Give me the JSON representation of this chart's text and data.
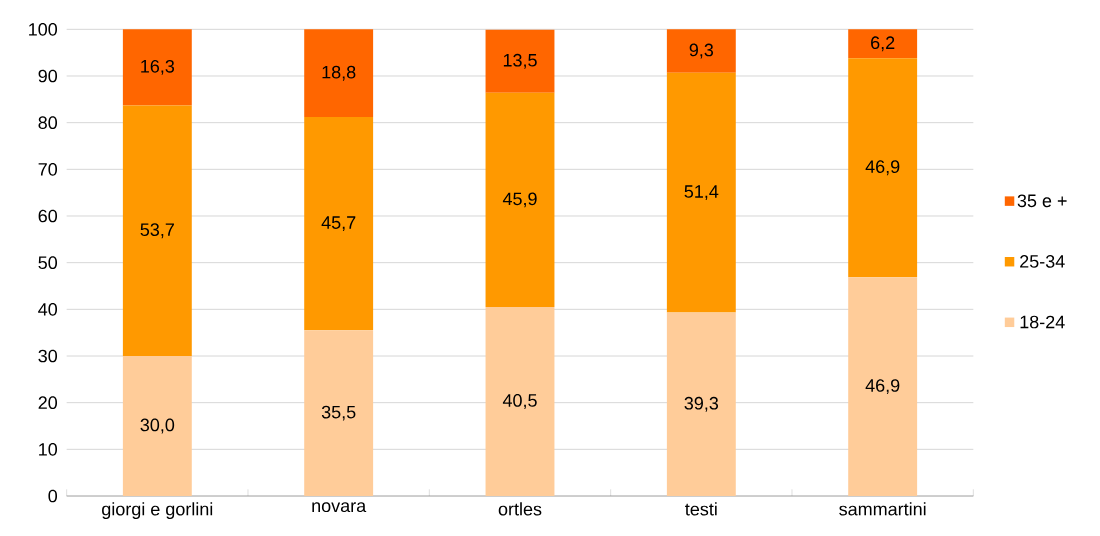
{
  "chart_data": {
    "type": "bar",
    "stacked": true,
    "categories": [
      "giorgi e gorlini",
      "novara",
      "ortles",
      "testi",
      "sammartini"
    ],
    "series": [
      {
        "name": "18-24",
        "color": "#ffcc99",
        "values": [
          30.0,
          35.5,
          40.5,
          39.3,
          46.9
        ],
        "value_labels": [
          "30,0",
          "35,5",
          "40,5",
          "39,3",
          "46,9"
        ]
      },
      {
        "name": "25-34",
        "color": "#ff9900",
        "values": [
          53.7,
          45.7,
          45.9,
          51.4,
          46.9
        ],
        "value_labels": [
          "53,7",
          "45,7",
          "45,9",
          "51,4",
          "46,9"
        ]
      },
      {
        "name": "35 e +",
        "color": "#ff6600",
        "values": [
          16.3,
          18.8,
          13.5,
          9.3,
          6.2
        ],
        "value_labels": [
          "16,3",
          "18,8",
          "13,5",
          "9,3",
          "6,2"
        ]
      }
    ],
    "ylim": [
      0,
      100
    ],
    "yticks": [
      0,
      10,
      20,
      30,
      40,
      50,
      60,
      70,
      80,
      90,
      100
    ],
    "grid": "y",
    "legend": "right"
  }
}
